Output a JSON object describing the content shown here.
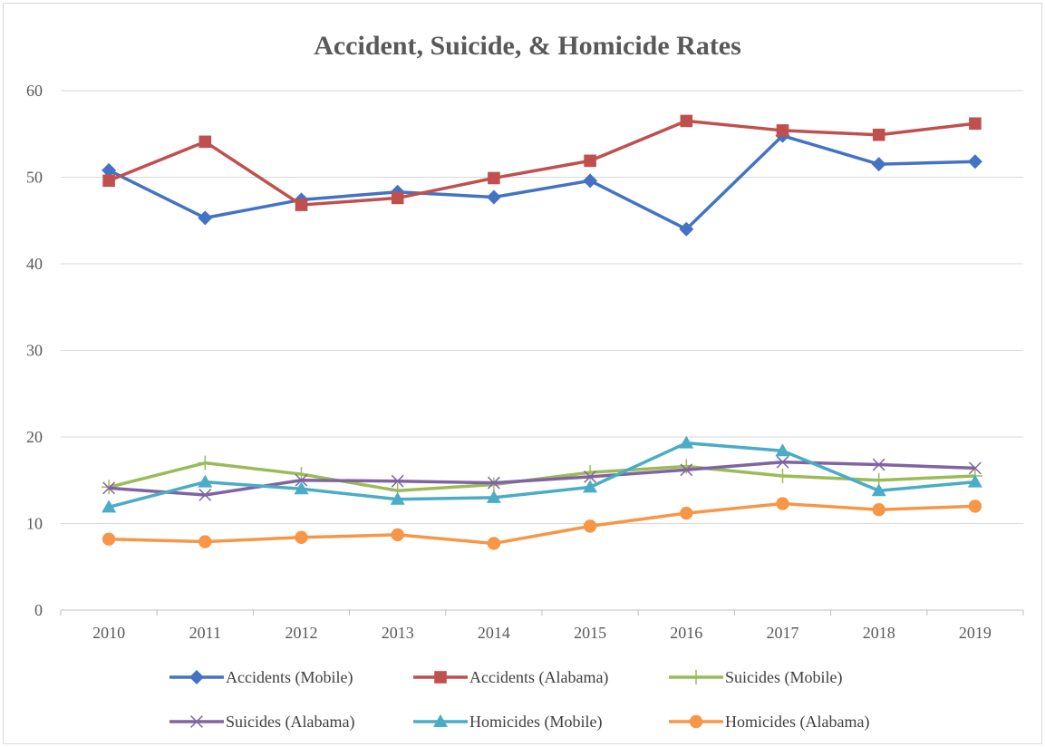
{
  "chart_data": {
    "type": "line",
    "title": "Accident, Suicide, & Homicide Rates",
    "categories": [
      "2010",
      "2011",
      "2012",
      "2013",
      "2014",
      "2015",
      "2016",
      "2017",
      "2018",
      "2019"
    ],
    "ylim": [
      0,
      60
    ],
    "yticks": [
      "0",
      "10",
      "20",
      "30",
      "40",
      "50",
      "60"
    ],
    "grid": "horizontal",
    "legend_position": "bottom",
    "series": [
      {
        "name": "Accidents (Mobile)",
        "color": "#4472c4",
        "marker": "diamond",
        "values": [
          50.8,
          45.3,
          47.4,
          48.3,
          47.7,
          49.6,
          44.0,
          54.8,
          51.5,
          51.8
        ]
      },
      {
        "name": "Accidents (Alabama)",
        "color": "#c0504d",
        "marker": "square",
        "values": [
          49.6,
          54.1,
          46.8,
          47.6,
          49.9,
          51.9,
          56.5,
          55.4,
          54.9,
          56.2
        ]
      },
      {
        "name": "Suicides (Mobile)",
        "color": "#9bbb59",
        "marker": "plus",
        "values": [
          14.2,
          17.0,
          15.7,
          13.8,
          14.5,
          15.9,
          16.6,
          15.5,
          15.0,
          15.5
        ]
      },
      {
        "name": "Suicides (Alabama)",
        "color": "#8064a2",
        "marker": "x",
        "values": [
          14.1,
          13.3,
          15.0,
          14.9,
          14.7,
          15.4,
          16.2,
          17.1,
          16.8,
          16.4
        ]
      },
      {
        "name": "Homicides (Mobile)",
        "color": "#4bacc6",
        "marker": "triangle",
        "values": [
          11.9,
          14.8,
          14.0,
          12.8,
          13.0,
          14.2,
          19.3,
          18.4,
          13.8,
          14.8
        ]
      },
      {
        "name": "Homicides (Alabama)",
        "color": "#f79646",
        "marker": "circle",
        "values": [
          8.2,
          7.9,
          8.4,
          8.7,
          7.7,
          9.7,
          11.2,
          12.3,
          11.6,
          12.0
        ]
      }
    ]
  }
}
